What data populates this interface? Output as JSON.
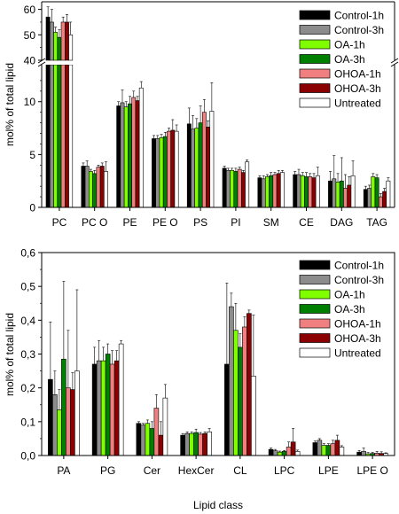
{
  "series_colors": [
    "#000000",
    "#8c8c8c",
    "#7fff00",
    "#008000",
    "#f08080",
    "#8b0000",
    "#ffffff"
  ],
  "chart_data": [
    {
      "type": "bar",
      "ylabel": "mol% of total lipid",
      "xlabel": "",
      "y_broken": true,
      "ylim_lower": [
        0,
        13.5
      ],
      "ylim_upper": [
        40,
        63
      ],
      "yticks_lower": [
        "0",
        "5",
        "10"
      ],
      "yticks_upper": [
        "40",
        "50",
        "60"
      ],
      "legend_position": "top-right",
      "categories": [
        "PC",
        "PC O",
        "PE",
        "PE O",
        "PS",
        "PI",
        "SM",
        "CE",
        "DAG",
        "TAG"
      ],
      "series": [
        {
          "name": "Control-1h",
          "values": [
            57,
            3.9,
            9.6,
            6.5,
            7.9,
            3.7,
            2.8,
            3.1,
            2.5,
            1.7
          ],
          "errors": [
            4,
            0.3,
            0.4,
            0.3,
            1.5,
            0.2,
            0.2,
            0.3,
            0.9,
            0.3
          ]
        },
        {
          "name": "Control-3h",
          "values": [
            55,
            3.9,
            9.9,
            6.5,
            7.4,
            3.5,
            2.7,
            3.1,
            2.7,
            1.8
          ],
          "errors": [
            5,
            0.5,
            1.2,
            0.3,
            1.3,
            0.2,
            0.3,
            0.5,
            2.2,
            0.3
          ]
        },
        {
          "name": "OA-1h",
          "values": [
            51,
            3.4,
            9.5,
            6.6,
            7.5,
            3.5,
            2.9,
            3.0,
            2.4,
            2.9
          ],
          "errors": [
            2,
            0.2,
            0.5,
            0.3,
            0.9,
            0.2,
            0.2,
            0.3,
            0.8,
            0.3
          ]
        },
        {
          "name": "OA-3h",
          "values": [
            49,
            3.2,
            9.8,
            6.7,
            8.0,
            3.4,
            3.0,
            2.9,
            2.5,
            2.8
          ],
          "errors": [
            3,
            0.3,
            0.7,
            0.4,
            1.6,
            0.3,
            0.3,
            0.4,
            2.2,
            0.3
          ]
        },
        {
          "name": "OHOA-1h",
          "values": [
            55,
            3.8,
            10.4,
            7.2,
            9.0,
            3.6,
            3.1,
            2.9,
            1.8,
            1.0
          ],
          "errors": [
            2,
            0.2,
            0.6,
            0.3,
            1.2,
            0.2,
            0.2,
            0.3,
            1.3,
            0.3
          ]
        },
        {
          "name": "OHOA-3h",
          "values": [
            55,
            3.9,
            10.1,
            7.3,
            7.6,
            3.3,
            3.2,
            2.8,
            2.1,
            1.5
          ],
          "errors": [
            3,
            0.3,
            0.4,
            1.0,
            0.6,
            0.2,
            0.3,
            0.4,
            0.8,
            0.3
          ]
        },
        {
          "name": "Untreated",
          "values": [
            50,
            3.4,
            11.3,
            7.2,
            9.1,
            4.3,
            3.3,
            3.0,
            3.0,
            2.5
          ],
          "errors": [
            5,
            0.9,
            0.6,
            0.6,
            2.7,
            0.2,
            0.2,
            0.8,
            1.4,
            0.3
          ]
        }
      ]
    },
    {
      "type": "bar",
      "ylabel": "mol% of total lipid",
      "xlabel": "Lipid class",
      "ylim": [
        0,
        0.6
      ],
      "yticks": [
        "0,0",
        "0,1",
        "0,2",
        "0,3",
        "0,4",
        "0,5",
        "0,6"
      ],
      "legend_position": "top-right",
      "categories": [
        "PA",
        "PG",
        "Cer",
        "HexCer",
        "CL",
        "LPC",
        "LPE",
        "LPE O"
      ],
      "series": [
        {
          "name": "Control-1h",
          "values": [
            0.225,
            0.27,
            0.095,
            0.06,
            0.27,
            0.018,
            0.038,
            0.01
          ],
          "errors": [
            0.17,
            0.05,
            0.005,
            0.005,
            0.24,
            0.004,
            0.005,
            0.005
          ]
        },
        {
          "name": "Control-3h",
          "values": [
            0.18,
            0.28,
            0.09,
            0.065,
            0.44,
            0.014,
            0.045,
            0.012
          ],
          "errors": [
            0.07,
            0.06,
            0.005,
            0.005,
            0.04,
            0.004,
            0.005,
            0.01
          ]
        },
        {
          "name": "OA-1h",
          "values": [
            0.135,
            0.28,
            0.095,
            0.065,
            0.37,
            0.01,
            0.03,
            0.005
          ],
          "errors": [
            0.06,
            0.04,
            0.01,
            0.005,
            0.08,
            0.003,
            0.005,
            0.004
          ]
        },
        {
          "name": "OA-3h",
          "values": [
            0.285,
            0.3,
            0.08,
            0.068,
            0.32,
            0.012,
            0.03,
            0.006
          ],
          "errors": [
            0.23,
            0.03,
            0.02,
            0.01,
            0.04,
            0.003,
            0.005,
            0.003
          ]
        },
        {
          "name": "OHOA-1h",
          "values": [
            0.2,
            0.27,
            0.14,
            0.063,
            0.38,
            0.025,
            0.035,
            0.007
          ],
          "errors": [
            0.17,
            0.04,
            0.04,
            0.005,
            0.03,
            0.015,
            0.01,
            0.005
          ]
        },
        {
          "name": "OHOA-3h",
          "values": [
            0.195,
            0.28,
            0.06,
            0.065,
            0.42,
            0.04,
            0.045,
            0.006
          ],
          "errors": [
            0.05,
            0.03,
            0.04,
            0.005,
            0.01,
            0.04,
            0.015,
            0.005
          ]
        },
        {
          "name": "Untreated",
          "values": [
            0.25,
            0.33,
            0.17,
            0.07,
            0.235,
            0.012,
            0.025,
            0.006
          ],
          "errors": [
            0.24,
            0.01,
            0.04,
            0.01,
            0.18,
            0.004,
            0.004,
            0.002
          ]
        }
      ]
    }
  ]
}
